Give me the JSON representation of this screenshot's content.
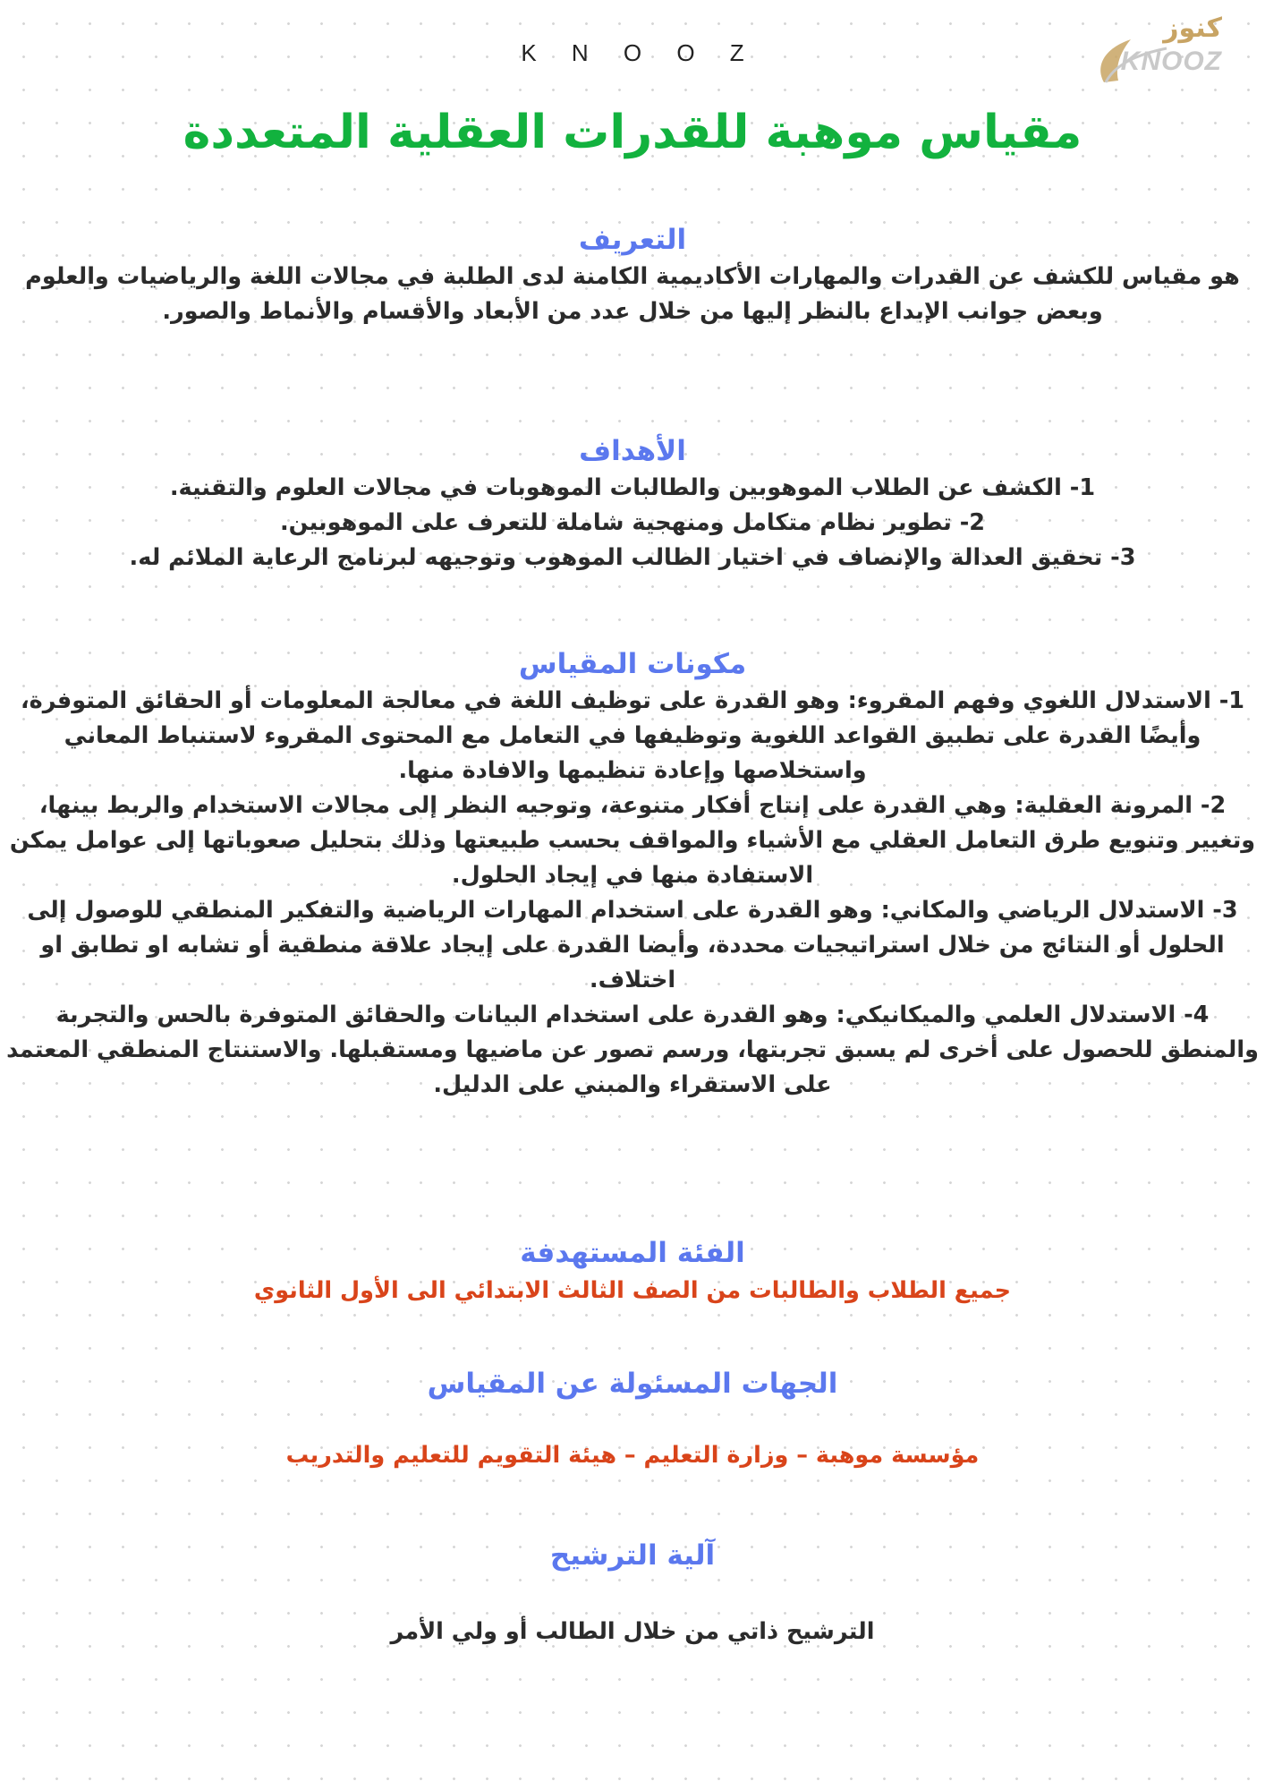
{
  "header": {
    "brand": "K N O O Z",
    "logo_arabic": "كنوز",
    "logo_latin": "KNOOZ"
  },
  "title": "مقياس موهبة للقدرات العقلية المتعددة",
  "definition": {
    "heading": "التعريف",
    "text": "هو مقياس للكشف عن القدرات والمهارات الأكاديمية الكامنة لدى الطلبة في مجالات اللغة والرياضيات والعلوم وبعض جوانب الإبداع بالنظر إليها من خلال عدد من الأبعاد والأقسام والأنماط والصور."
  },
  "goals": {
    "heading": "الأهداف",
    "items": [
      "1- الكشف عن الطلاب الموهوبين والطالبات الموهوبات في مجالات العلوم والتقنية.",
      "2- تطوير نظام متكامل ومنهجية شاملة للتعرف على الموهوبين.",
      "3- تحقيق العدالة والإنصاف في اختيار الطالب الموهوب وتوجيهه لبرنامج الرعاية الملائم له."
    ]
  },
  "components": {
    "heading": "مكونات المقياس",
    "items": [
      "1- الاستدلال اللغوي وفهم المقروء: وهو القدرة على توظيف اللغة في معالجة المعلومات أو الحقائق المتوفرة، وأيضًا القدرة على تطبيق القواعد اللغوية وتوظيفها في التعامل مع المحتوى المقروء لاستنباط المعاني واستخلاصها وإعادة تنظيمها والافادة منها.",
      "2- المرونة العقلية: وهي القدرة على إنتاج أفكار متنوعة، وتوجيه النظر إلى مجالات الاستخدام والربط بينها، وتغيير وتنويع طرق التعامل العقلي مع الأشياء والمواقف بحسب طبيعتها وذلك بتحليل صعوباتها إلى عوامل يمكن الاستفادة منها في إيجاد الحلول.",
      "3- الاستدلال الرياضي والمكاني: وهو القدرة على استخدام المهارات الرياضية والتفكير المنطقي للوصول إلى الحلول أو النتائج من خلال استراتيجيات محددة، وأيضا القدرة على إيجاد علاقة منطقية أو تشابه او تطابق او اختلاف.",
      "4- الاستدلال العلمي والميكانيكي: وهو القدرة على استخدام البيانات والحقائق المتوفرة بالحس والتجربة والمنطق للحصول على أخرى لم يسبق تجربتها، ورسم تصور عن ماضيها ومستقبلها. والاستنتاج المنطقي المعتمد على الاستقراء والمبني على الدليل."
    ]
  },
  "target": {
    "heading": "الفئة المستهدفة",
    "text": "جميع الطلاب والطالبات من الصف الثالث الابتدائي الى الأول الثانوي"
  },
  "authorities": {
    "heading": "الجهات المسئولة عن المقياس",
    "text": "مؤسسة موهبة – وزارة التعليم – هيئة التقويم للتعليم والتدريب"
  },
  "nomination": {
    "heading": "آلية الترشيح",
    "text": "الترشيح ذاتي من خلال الطالب أو ولي الأمر"
  },
  "colors": {
    "title": "#12b23e",
    "heading": "#5b78ee",
    "highlight": "#d9441a",
    "logo_gold": "#c8a464"
  }
}
